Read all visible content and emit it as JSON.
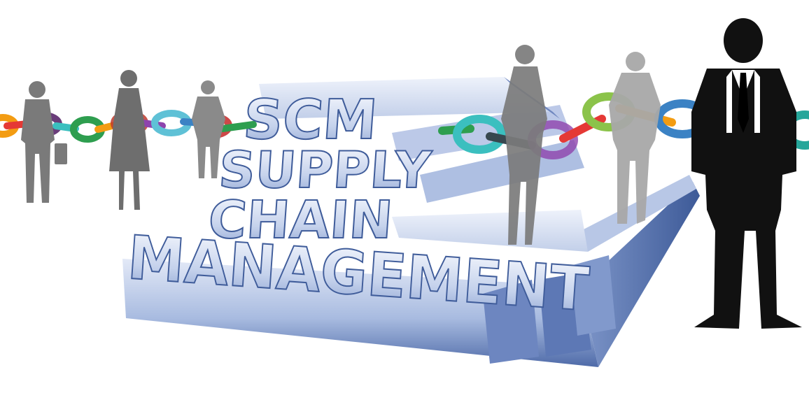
{
  "heading": {
    "line1": "SCM",
    "line2": "SUPPLY",
    "line3": "CHAIN",
    "line4": "MANAGEMENT"
  },
  "colors": {
    "background": "#ffffff",
    "block_light": "#d4def2",
    "block_mid": "#9bb0d8",
    "block_dark": "#5f79b3",
    "block_edge": "#2f4c8d",
    "silhouette_gray": "#777777",
    "silhouette_light": "#aaaaaa",
    "silhouette_black": "#111111",
    "link_orange": "#f39c12",
    "link_red": "#e53935",
    "link_green": "#2e9e4f",
    "link_teal": "#3bbfbf",
    "link_purple": "#8e44ad",
    "link_blue": "#3b82c4",
    "link_lime": "#8bc34a"
  }
}
